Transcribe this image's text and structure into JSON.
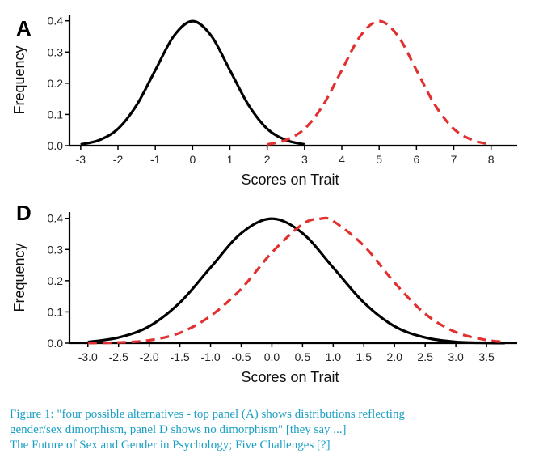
{
  "chart_data": [
    {
      "type": "line",
      "panel_label": "A",
      "xlabel": "Scores on Trait",
      "ylabel": "Frequency",
      "xlim": [
        -3.3,
        8.7
      ],
      "ylim": [
        0,
        0.42
      ],
      "xticks": [
        -3,
        -2,
        -1,
        0,
        1,
        2,
        3,
        4,
        5,
        6,
        7,
        8
      ],
      "xtick_labels": [
        "-3",
        "-2",
        "-1",
        "0",
        "1",
        "2",
        "3",
        "4",
        "5",
        "6",
        "7",
        "8"
      ],
      "yticks": [
        0,
        0.1,
        0.2,
        0.3,
        0.4
      ],
      "ytick_labels": [
        "0.0",
        "0.1",
        "0.2",
        "0.3",
        "0.4"
      ],
      "grid": false,
      "series": [
        {
          "style": "solid",
          "color": "#000000",
          "x": [
            -3,
            -2.5,
            -2,
            -1.5,
            -1,
            -0.5,
            0,
            0.5,
            1,
            1.5,
            2,
            2.5,
            3
          ],
          "y": [
            0.004,
            0.018,
            0.054,
            0.13,
            0.242,
            0.352,
            0.399,
            0.352,
            0.242,
            0.13,
            0.054,
            0.018,
            0.004
          ]
        },
        {
          "style": "dashed",
          "color": "#e03030",
          "x": [
            2,
            2.5,
            3,
            3.5,
            4,
            4.5,
            5,
            5.5,
            6,
            6.5,
            7,
            7.5,
            8
          ],
          "y": [
            0.004,
            0.018,
            0.054,
            0.13,
            0.242,
            0.352,
            0.399,
            0.352,
            0.242,
            0.13,
            0.054,
            0.018,
            0.004
          ]
        }
      ]
    },
    {
      "type": "line",
      "panel_label": "D",
      "xlabel": "Scores on Trait",
      "ylabel": "Frequency",
      "xlim": [
        -3.3,
        4.0
      ],
      "ylim": [
        0,
        0.42
      ],
      "xticks": [
        -3,
        -2.5,
        -2,
        -1.5,
        -1,
        -0.5,
        0,
        0.5,
        1,
        1.5,
        2,
        2.5,
        3,
        3.5
      ],
      "xtick_labels": [
        "-3.0",
        "-2.5",
        "-2.0",
        "-1.5",
        "-1.0",
        "-0.5",
        "0.0",
        "0.5",
        "1.0",
        "1.5",
        "2.0",
        "2.5",
        "3.0",
        "3.5"
      ],
      "yticks": [
        0,
        0.1,
        0.2,
        0.3,
        0.4
      ],
      "ytick_labels": [
        "0.0",
        "0.1",
        "0.2",
        "0.3",
        "0.4"
      ],
      "grid": false,
      "series": [
        {
          "style": "solid",
          "color": "#000000",
          "x": [
            -3,
            -2.5,
            -2,
            -1.5,
            -1,
            -0.5,
            0,
            0.5,
            1,
            1.5,
            2,
            2.5,
            3,
            3.5,
            3.8
          ],
          "y": [
            0.004,
            0.018,
            0.054,
            0.13,
            0.242,
            0.352,
            0.399,
            0.352,
            0.242,
            0.13,
            0.054,
            0.018,
            0.004,
            0.001,
            0.0003
          ]
        },
        {
          "style": "dashed",
          "color": "#e03030",
          "x": [
            -3,
            -2.5,
            -2,
            -1.5,
            -1,
            -0.5,
            0,
            0.5,
            0.8,
            1,
            1.5,
            2,
            2.5,
            3,
            3.5,
            3.8
          ],
          "y": [
            0.0003,
            0.002,
            0.009,
            0.033,
            0.087,
            0.174,
            0.29,
            0.381,
            0.399,
            0.391,
            0.312,
            0.194,
            0.094,
            0.035,
            0.01,
            0.004
          ]
        }
      ]
    }
  ],
  "caption": {
    "line1": "Figure 1: \"four possible alternatives - top panel (A) shows distributions reflecting",
    "line2": "gender/sex dimorphism, panel D shows no dimorphism\" [they say ...]",
    "line3": "The Future of Sex and Gender in Psychology; Five Challenges [?]"
  }
}
